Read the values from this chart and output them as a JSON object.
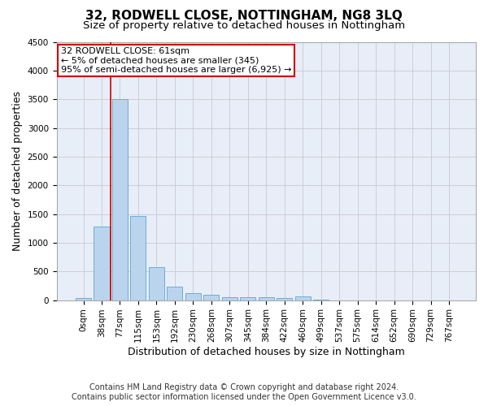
{
  "title": "32, RODWELL CLOSE, NOTTINGHAM, NG8 3LQ",
  "subtitle": "Size of property relative to detached houses in Nottingham",
  "xlabel": "Distribution of detached houses by size in Nottingham",
  "ylabel": "Number of detached properties",
  "footer_line1": "Contains HM Land Registry data © Crown copyright and database right 2024.",
  "footer_line2": "Contains public sector information licensed under the Open Government Licence v3.0.",
  "bar_labels": [
    "0sqm",
    "38sqm",
    "77sqm",
    "115sqm",
    "153sqm",
    "192sqm",
    "230sqm",
    "268sqm",
    "307sqm",
    "345sqm",
    "384sqm",
    "422sqm",
    "460sqm",
    "499sqm",
    "537sqm",
    "575sqm",
    "614sqm",
    "652sqm",
    "690sqm",
    "729sqm",
    "767sqm"
  ],
  "bar_values": [
    40,
    1280,
    3500,
    1470,
    570,
    240,
    120,
    90,
    55,
    50,
    50,
    40,
    60,
    5,
    0,
    0,
    0,
    0,
    0,
    0,
    0
  ],
  "bar_color": "#bad4ee",
  "bar_edgecolor": "#6aaed6",
  "ylim": [
    0,
    4500
  ],
  "yticks": [
    0,
    500,
    1000,
    1500,
    2000,
    2500,
    3000,
    3500,
    4000,
    4500
  ],
  "vline_x": 1.5,
  "vline_color": "#cc0000",
  "annotation_line1": "32 RODWELL CLOSE: 61sqm",
  "annotation_line2": "← 5% of detached houses are smaller (345)",
  "annotation_line3": "95% of semi-detached houses are larger (6,925) →",
  "annotation_box_color": "#cc0000",
  "background_color": "#e8eef8",
  "grid_color": "#c8c8d0",
  "title_fontsize": 11,
  "subtitle_fontsize": 9.5,
  "axis_label_fontsize": 9,
  "tick_fontsize": 7.5,
  "annotation_fontsize": 8,
  "footer_fontsize": 7
}
